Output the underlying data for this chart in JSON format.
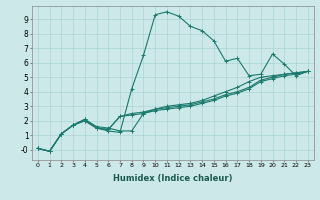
{
  "xlabel": "Humidex (Indice chaleur)",
  "ylabel": "",
  "xlim": [
    -0.5,
    23.5
  ],
  "ylim": [
    -0.7,
    9.9
  ],
  "xticks": [
    0,
    1,
    2,
    3,
    4,
    5,
    6,
    7,
    8,
    9,
    10,
    11,
    12,
    13,
    14,
    15,
    16,
    17,
    18,
    19,
    20,
    21,
    22,
    23
  ],
  "yticks": [
    0,
    1,
    2,
    3,
    4,
    5,
    6,
    7,
    8,
    9
  ],
  "ytick_labels": [
    "-0",
    "1",
    "2",
    "3",
    "4",
    "5",
    "6",
    "7",
    "8",
    "9"
  ],
  "bg_color": "#cde8e8",
  "line_color": "#1a7a6e",
  "lines": [
    {
      "x": [
        0,
        1,
        2,
        3,
        4,
        5,
        6,
        7,
        8,
        9,
        10,
        11,
        12,
        13,
        14,
        15,
        16,
        17,
        18,
        19,
        20,
        21,
        22,
        23
      ],
      "y": [
        0.1,
        -0.1,
        1.1,
        1.7,
        2.1,
        1.5,
        1.3,
        1.2,
        4.2,
        6.5,
        9.3,
        9.5,
        9.2,
        8.5,
        8.2,
        7.5,
        6.1,
        6.3,
        5.1,
        5.2,
        6.6,
        5.9,
        5.1,
        5.4
      ]
    },
    {
      "x": [
        0,
        1,
        2,
        3,
        4,
        5,
        6,
        7,
        8,
        9,
        10,
        11,
        12,
        13,
        14,
        15,
        16,
        17,
        18,
        19,
        20,
        21,
        22,
        23
      ],
      "y": [
        0.1,
        -0.1,
        1.1,
        1.7,
        2.0,
        1.5,
        1.4,
        2.3,
        2.5,
        2.6,
        2.8,
        2.9,
        3.0,
        3.1,
        3.3,
        3.5,
        3.8,
        4.0,
        4.3,
        4.8,
        5.0,
        5.2,
        5.3,
        5.4
      ]
    },
    {
      "x": [
        0,
        1,
        2,
        3,
        4,
        5,
        6,
        7,
        8,
        9,
        10,
        11,
        12,
        13,
        14,
        15,
        16,
        17,
        18,
        19,
        20,
        21,
        22,
        23
      ],
      "y": [
        0.1,
        -0.1,
        1.1,
        1.7,
        2.0,
        1.5,
        1.4,
        2.3,
        2.4,
        2.5,
        2.7,
        2.8,
        2.9,
        3.0,
        3.2,
        3.4,
        3.7,
        3.9,
        4.2,
        4.7,
        4.9,
        5.1,
        5.2,
        5.4
      ]
    },
    {
      "x": [
        0,
        1,
        2,
        3,
        4,
        5,
        6,
        7,
        8,
        9,
        10,
        11,
        12,
        13,
        14,
        15,
        16,
        17,
        18,
        19,
        20,
        21,
        22,
        23
      ],
      "y": [
        0.1,
        -0.1,
        1.1,
        1.7,
        2.1,
        1.6,
        1.5,
        1.3,
        1.3,
        2.5,
        2.8,
        3.0,
        3.1,
        3.2,
        3.4,
        3.7,
        4.0,
        4.3,
        4.7,
        5.0,
        5.1,
        5.2,
        5.3,
        5.4
      ]
    }
  ]
}
